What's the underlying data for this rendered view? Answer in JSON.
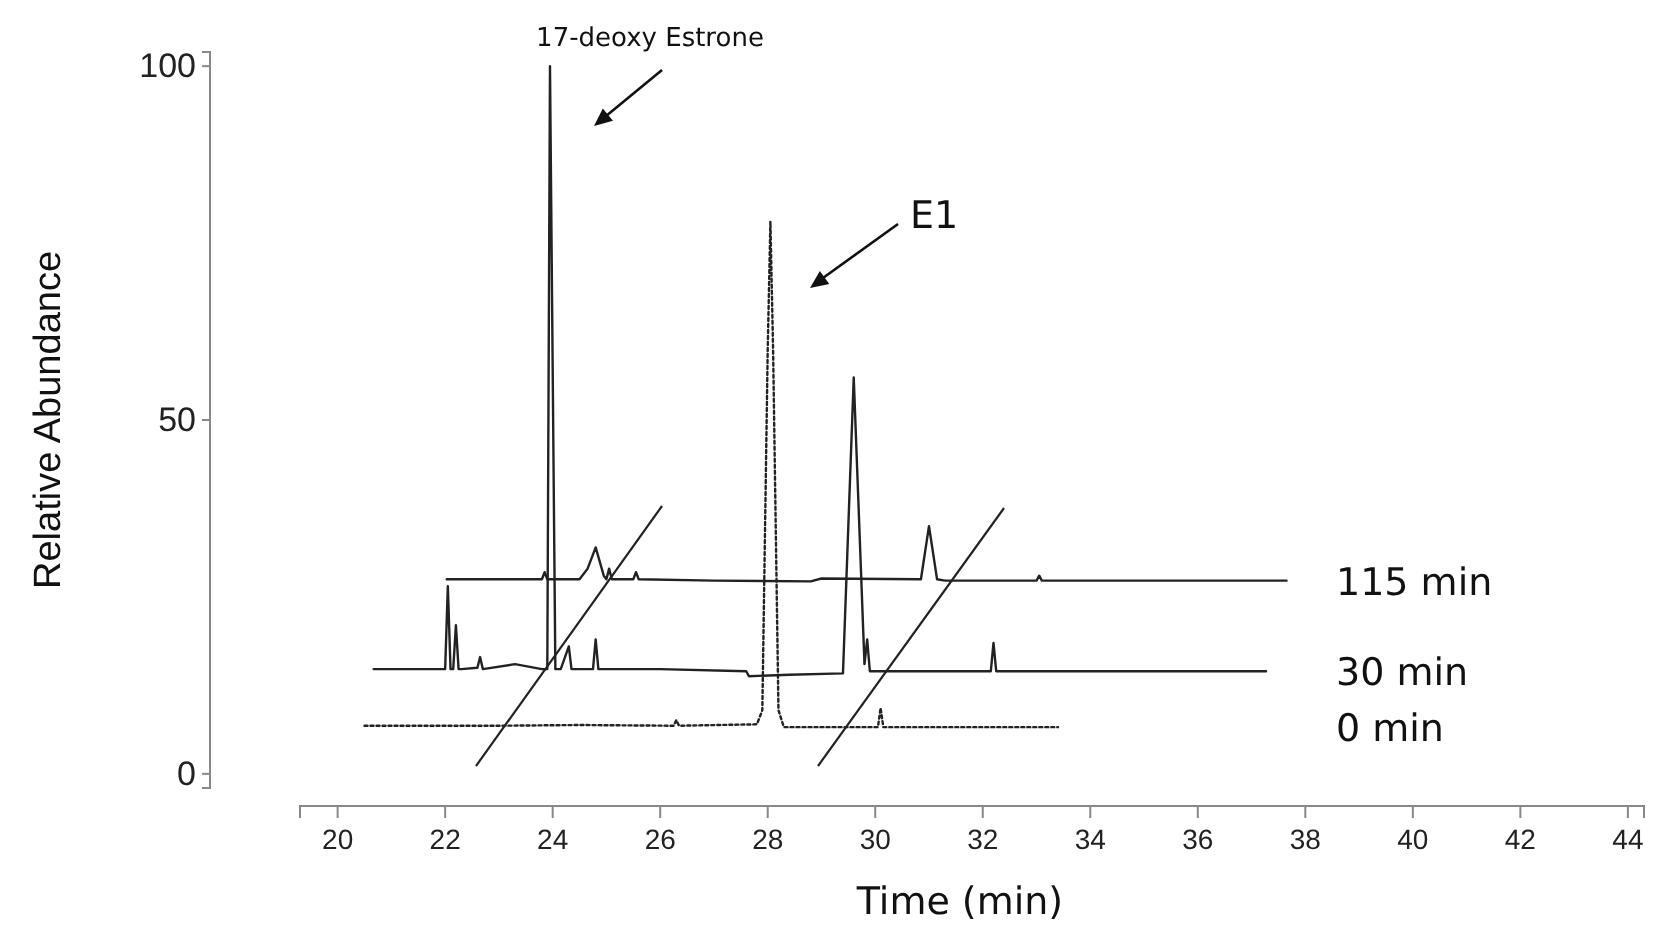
{
  "chart_data": {
    "type": "line",
    "xlabel": "Time (min)",
    "ylabel": "Relative Abundance",
    "xlim": [
      19.3,
      44.3
    ],
    "ylim": [
      -2,
      102
    ],
    "xticks": [
      20,
      22,
      24,
      26,
      28,
      30,
      32,
      34,
      36,
      38,
      40,
      42,
      44
    ],
    "yticks": [
      0,
      50,
      100
    ],
    "grid": false,
    "marker": "none",
    "annotations": [
      "17-deoxy Estrone",
      "E1"
    ],
    "series": [
      {
        "name": "115 min",
        "color": "#222222",
        "line_style": "solid",
        "x": [
          22.03,
          23.5,
          23.8,
          23.85,
          23.9,
          24.5,
          24.65,
          24.8,
          24.95,
          25.0,
          25.05,
          25.1,
          25.5,
          25.55,
          25.6,
          27,
          28.8,
          29,
          30.85,
          31.0,
          31.15,
          31.3,
          33,
          33.05,
          33.1,
          35,
          37.65
        ],
        "values": [
          27.5,
          27.5,
          27.5,
          28.5,
          27.5,
          27.5,
          29,
          32,
          28,
          27.5,
          29,
          27.5,
          27.5,
          28.5,
          27.5,
          27.3,
          27.2,
          27.6,
          27.5,
          35,
          27.5,
          27.3,
          27.3,
          28,
          27.3,
          27.3,
          27.3
        ]
      },
      {
        "name": "30 min",
        "color": "#222222",
        "line_style": "solid",
        "x": [
          20.67,
          22.0,
          22.05,
          22.1,
          22.15,
          22.2,
          22.25,
          22.3,
          22.6,
          22.65,
          22.7,
          23.3,
          23.8,
          23.9,
          23.95,
          24.05,
          24.15,
          24.3,
          24.35,
          24.4,
          24.75,
          24.8,
          24.85,
          26,
          27.6,
          27.65,
          28.4,
          29.4,
          29.6,
          29.8,
          29.85,
          29.9,
          31,
          32.15,
          32.2,
          32.25,
          37.27
        ],
        "values": [
          14.8,
          14.8,
          26.5,
          14.8,
          14.8,
          21,
          14.8,
          14.8,
          15,
          16.5,
          14.8,
          15.5,
          14.8,
          14.8,
          100,
          14.8,
          14.8,
          18,
          14.8,
          14.8,
          14.8,
          19,
          14.8,
          14.8,
          14.5,
          13.8,
          14,
          14.2,
          56,
          15.5,
          19,
          14.5,
          14.5,
          14.5,
          18.5,
          14.5,
          14.5
        ]
      },
      {
        "name": "0 min",
        "color": "#222222",
        "line_style": "dotted",
        "x": [
          20.5,
          23,
          24.5,
          26.25,
          26.3,
          26.35,
          27.8,
          27.9,
          28.0,
          28.05,
          28.1,
          28.2,
          28.3,
          29.5,
          30.05,
          30.1,
          30.15,
          31.5,
          33.4
        ],
        "values": [
          6.8,
          6.8,
          6.9,
          6.8,
          7.6,
          6.8,
          7,
          9,
          60,
          78,
          60,
          9,
          6.6,
          6.6,
          6.6,
          9.3,
          6.6,
          6.6,
          6.6
        ]
      }
    ]
  }
}
